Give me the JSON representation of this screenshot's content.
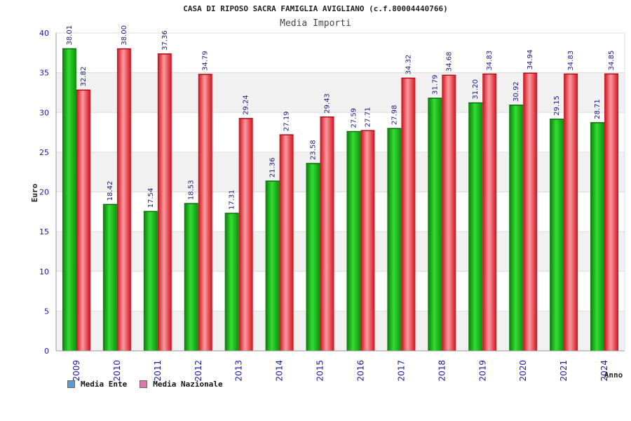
{
  "colors": {
    "ente": "#1fbf1f",
    "nazionale": "#f0202a",
    "legend_ente": "#5b9bd5",
    "legend_nazionale": "#d97aa8",
    "band": "#f1f1f1",
    "text_blue": "#1a1aa6"
  },
  "chart_data": {
    "type": "bar",
    "title": "CASA DI RIPOSO SACRA FAMIGLIA AVIGLIANO (c.f.80004440766)",
    "subtitle": "Media Importi",
    "ylabel": "Euro",
    "xlabel": "Anno",
    "ylim": [
      0,
      40
    ],
    "yticks": [
      0,
      5,
      10,
      15,
      20,
      25,
      30,
      35,
      40
    ],
    "grid": true,
    "legend_position": "bottom-left",
    "categories": [
      "2009",
      "2010",
      "2011",
      "2012",
      "2013",
      "2014",
      "2015",
      "2016",
      "2017",
      "2018",
      "2019",
      "2020",
      "2021",
      "2024"
    ],
    "series": [
      {
        "name": "Media Ente",
        "values": [
          38.01,
          18.42,
          17.54,
          18.53,
          17.31,
          21.36,
          23.58,
          27.59,
          27.98,
          31.79,
          31.2,
          30.92,
          29.15,
          28.71
        ]
      },
      {
        "name": "Media Nazionale",
        "values": [
          32.82,
          38.0,
          37.36,
          34.79,
          29.24,
          27.19,
          29.43,
          27.71,
          34.32,
          34.68,
          34.83,
          34.94,
          34.83,
          34.85
        ]
      }
    ],
    "value_labels": [
      [
        "38.01",
        "18.42",
        "17.54",
        "18.53",
        "17.31",
        "21.36",
        "23.58",
        "27.59",
        "27.98",
        "31.79",
        "31.20",
        "30.92",
        "29.15",
        "28.71"
      ],
      [
        "32.82",
        "38.00",
        "37.36",
        "34.79",
        "29.24",
        "27.19",
        "29.43",
        "27.71",
        "34.32",
        "34.68",
        "34.83",
        "34.94",
        "34.83",
        "34.85"
      ]
    ]
  }
}
